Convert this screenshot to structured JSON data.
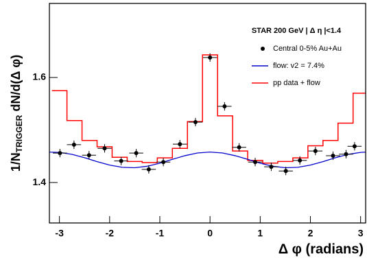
{
  "chart_data": {
    "type": "scatter",
    "xlabel": "Δ φ (radians)",
    "ylabel_main": "1/N",
    "ylabel_sub": "TRIGGER",
    "ylabel_rest": " dN/d(Δ φ)",
    "legend_title": "STAR 200 GeV | Δ η |<1.4",
    "legend": "upper right",
    "xlim": [
      -3.2,
      3.1
    ],
    "ylim": [
      1.323,
      1.741
    ],
    "xticks": [
      -3,
      -2,
      -1,
      0,
      1,
      2,
      3
    ],
    "yticks": [
      1.4,
      1.6
    ],
    "series": [
      {
        "name": "Central 0-5% Au+Au",
        "type": "scatter",
        "color": "#000000",
        "xerr": 0.14,
        "yerr": 0.008,
        "x": [
          -2.99,
          -2.71,
          -2.41,
          -2.1,
          -1.77,
          -1.47,
          -1.22,
          -0.93,
          -0.6,
          -0.29,
          0,
          0.29,
          0.58,
          0.9,
          1.22,
          1.51,
          1.79,
          2.1,
          2.45,
          2.71,
          2.88
        ],
        "values": [
          1.456,
          1.472,
          1.452,
          1.465,
          1.441,
          1.456,
          1.425,
          1.439,
          1.473,
          1.515,
          1.638,
          1.545,
          1.467,
          1.439,
          1.43,
          1.422,
          1.442,
          1.46,
          1.451,
          1.454,
          1.469
        ]
      },
      {
        "name": "flow: v2 = 7.4%",
        "type": "line",
        "color": "#0000cc",
        "x": [
          -3.2,
          -3.0,
          -2.75,
          -2.5,
          -2.25,
          -2.0,
          -1.75,
          -1.5,
          -1.25,
          -1.0,
          -0.75,
          -0.5,
          -0.25,
          0,
          0.25,
          0.5,
          0.75,
          1.0,
          1.25,
          1.5,
          1.75,
          2.0,
          2.25,
          2.5,
          2.75,
          3.0,
          3.1
        ],
        "values": [
          1.4579,
          1.4574,
          1.4536,
          1.4473,
          1.4398,
          1.4332,
          1.429,
          1.4282,
          1.431,
          1.4368,
          1.4441,
          1.4511,
          1.4562,
          1.458,
          1.4562,
          1.4511,
          1.4441,
          1.4368,
          1.431,
          1.4282,
          1.429,
          1.4332,
          1.4398,
          1.4473,
          1.4536,
          1.4574,
          1.4579
        ]
      },
      {
        "name": "pp data + flow",
        "type": "step",
        "color": "#ff0000",
        "bins": [
          -3.15,
          -2.85,
          -2.55,
          -2.25,
          -1.95,
          -1.65,
          -1.35,
          -1.05,
          -0.75,
          -0.45,
          -0.15,
          0.15,
          0.45,
          0.75,
          1.05,
          1.35,
          1.65,
          1.95,
          2.25,
          2.55,
          2.85,
          3.15
        ],
        "values": [
          1.575,
          1.518,
          1.48,
          1.468,
          1.448,
          1.44,
          1.438,
          1.447,
          1.465,
          1.516,
          1.643,
          1.527,
          1.46,
          1.442,
          1.437,
          1.44,
          1.447,
          1.47,
          1.48,
          1.513,
          1.57
        ]
      }
    ]
  }
}
